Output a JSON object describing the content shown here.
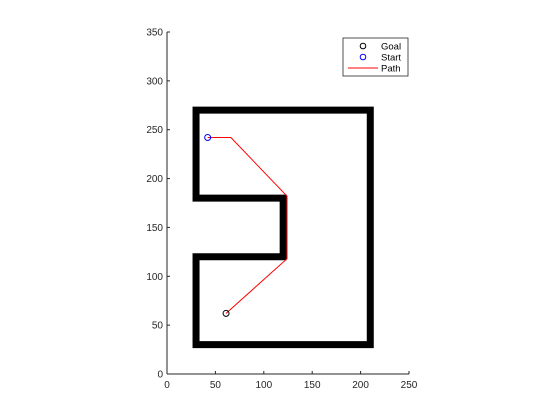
{
  "chart_data": {
    "type": "line",
    "title": "",
    "xlabel": "",
    "ylabel": "",
    "xlim": [
      0,
      250
    ],
    "ylim": [
      0,
      350
    ],
    "xticks": [
      0,
      50,
      100,
      150,
      200,
      250
    ],
    "yticks": [
      0,
      50,
      100,
      150,
      200,
      250,
      300,
      350
    ],
    "grid": false,
    "legend_position": "top-right",
    "legend": [
      {
        "label": "Goal",
        "kind": "marker",
        "marker": "circle",
        "color": "#000000"
      },
      {
        "label": "Start",
        "kind": "marker",
        "marker": "circle",
        "color": "#0000ff"
      },
      {
        "label": "Path",
        "kind": "line",
        "color": "#ff0000"
      }
    ],
    "walls": {
      "color": "#000000",
      "polygon": [
        [
          30,
          270
        ],
        [
          210,
          270
        ],
        [
          210,
          30
        ],
        [
          30,
          30
        ],
        [
          30,
          120
        ],
        [
          120,
          120
        ],
        [
          120,
          180
        ],
        [
          30,
          180
        ],
        [
          30,
          270
        ]
      ]
    },
    "path": {
      "color": "#ff0000",
      "points": [
        [
          42,
          242
        ],
        [
          66,
          242
        ],
        [
          124,
          182
        ],
        [
          124,
          118
        ],
        [
          61,
          62
        ]
      ]
    },
    "start": {
      "x": 42,
      "y": 242,
      "color": "#0000ff"
    },
    "goal": {
      "x": 61,
      "y": 62,
      "color": "#000000"
    }
  }
}
